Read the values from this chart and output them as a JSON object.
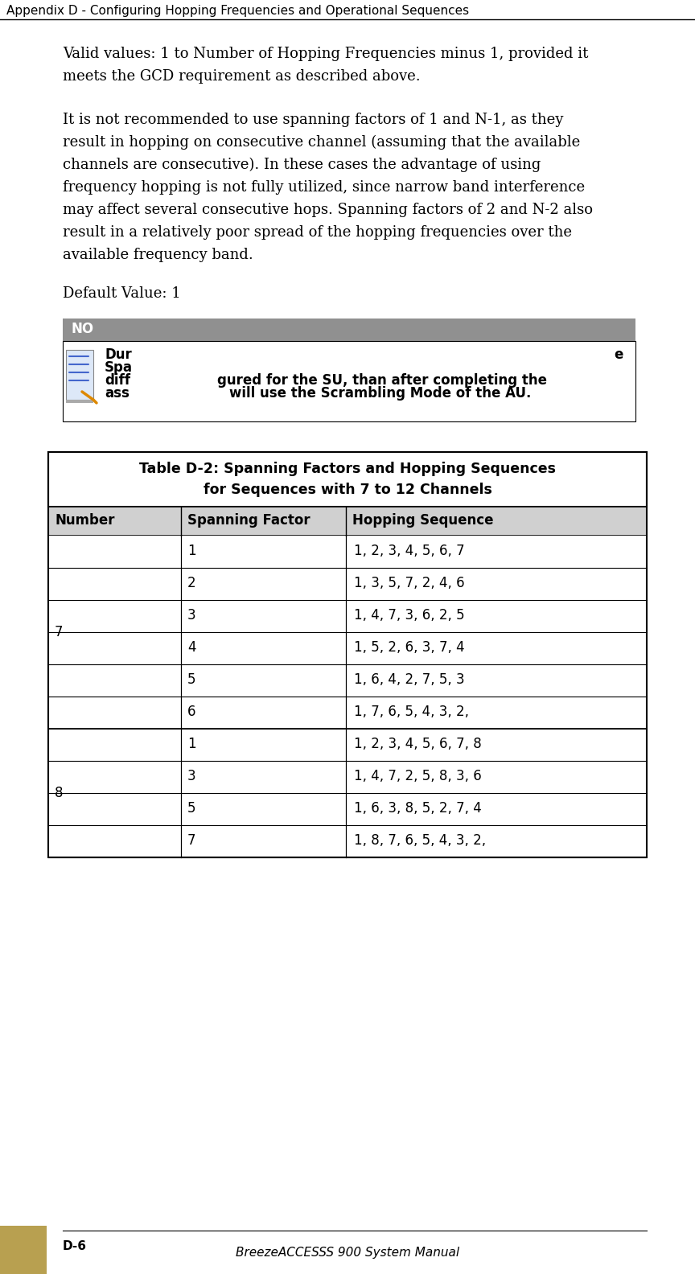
{
  "page_title": "Appendix D - Configuring Hopping Frequencies and Operational Sequences",
  "para1_line1": "Valid values: 1 to Number of Hopping Frequencies minus 1, provided it",
  "para1_line2": "meets the GCD requirement as described above.",
  "para2_line1": "It is not recommended to use spanning factors of 1 and N-1, as they",
  "para2_line2": "result in hopping on consecutive channel (assuming that the available",
  "para2_line3": "channels are consecutive). In these cases the advantage of using",
  "para2_line4": "frequency hopping is not fully utilized, since narrow band interference",
  "para2_line5": "may affect several consecutive hops. Spanning factors of 2 and N-2 also",
  "para2_line6": "result in a relatively poor spread of the hopping frequencies over the",
  "para2_line7": "available frequency band.",
  "default_value": "Default Value: 1",
  "note_header": "NO",
  "note_line1a": "Dur",
  "note_line1b": "e",
  "note_line2": "Spa",
  "note_line3a": "diff",
  "note_line3b": "gured for the SU, than after completing the",
  "note_line4a": "ass",
  "note_line4b": "will use the Scrambling Mode of the AU.",
  "table_title1": "Table D-2: Spanning Factors and Hopping Sequences",
  "table_title2": "for Sequences with 7 to 12 Channels",
  "col_headers": [
    "Number",
    "Spanning Factor",
    "Hopping Sequence"
  ],
  "table_data": [
    [
      "7",
      "1",
      "1, 2, 3, 4, 5, 6, 7"
    ],
    [
      "",
      "2",
      "1, 3, 5, 7, 2, 4, 6"
    ],
    [
      "",
      "3",
      "1, 4, 7, 3, 6, 2, 5"
    ],
    [
      "",
      "4",
      "1, 5, 2, 6, 3, 7, 4"
    ],
    [
      "",
      "5",
      "1, 6, 4, 2, 7, 5, 3"
    ],
    [
      "",
      "6",
      "1, 7, 6, 5, 4, 3, 2,"
    ],
    [
      "8",
      "1",
      "1, 2, 3, 4, 5, 6, 7, 8"
    ],
    [
      "",
      "3",
      "1, 4, 7, 2, 5, 8, 3, 6"
    ],
    [
      "",
      "5",
      "1, 6, 3, 8, 5, 2, 7, 4"
    ],
    [
      "",
      "7",
      "1, 8, 7, 6, 5, 4, 3, 2,"
    ]
  ],
  "footer_text": "BreezeACCESSS 900 System Manual",
  "footer_page": "D-6",
  "bg_color": "#ffffff",
  "header_line_color": "#000000",
  "table_header_bg": "#d0d0d0",
  "note_header_bg": "#909090",
  "note_header_fg": "#ffffff",
  "gold_color": "#b8a050",
  "body_fontsize": 13,
  "header_fontsize": 11
}
